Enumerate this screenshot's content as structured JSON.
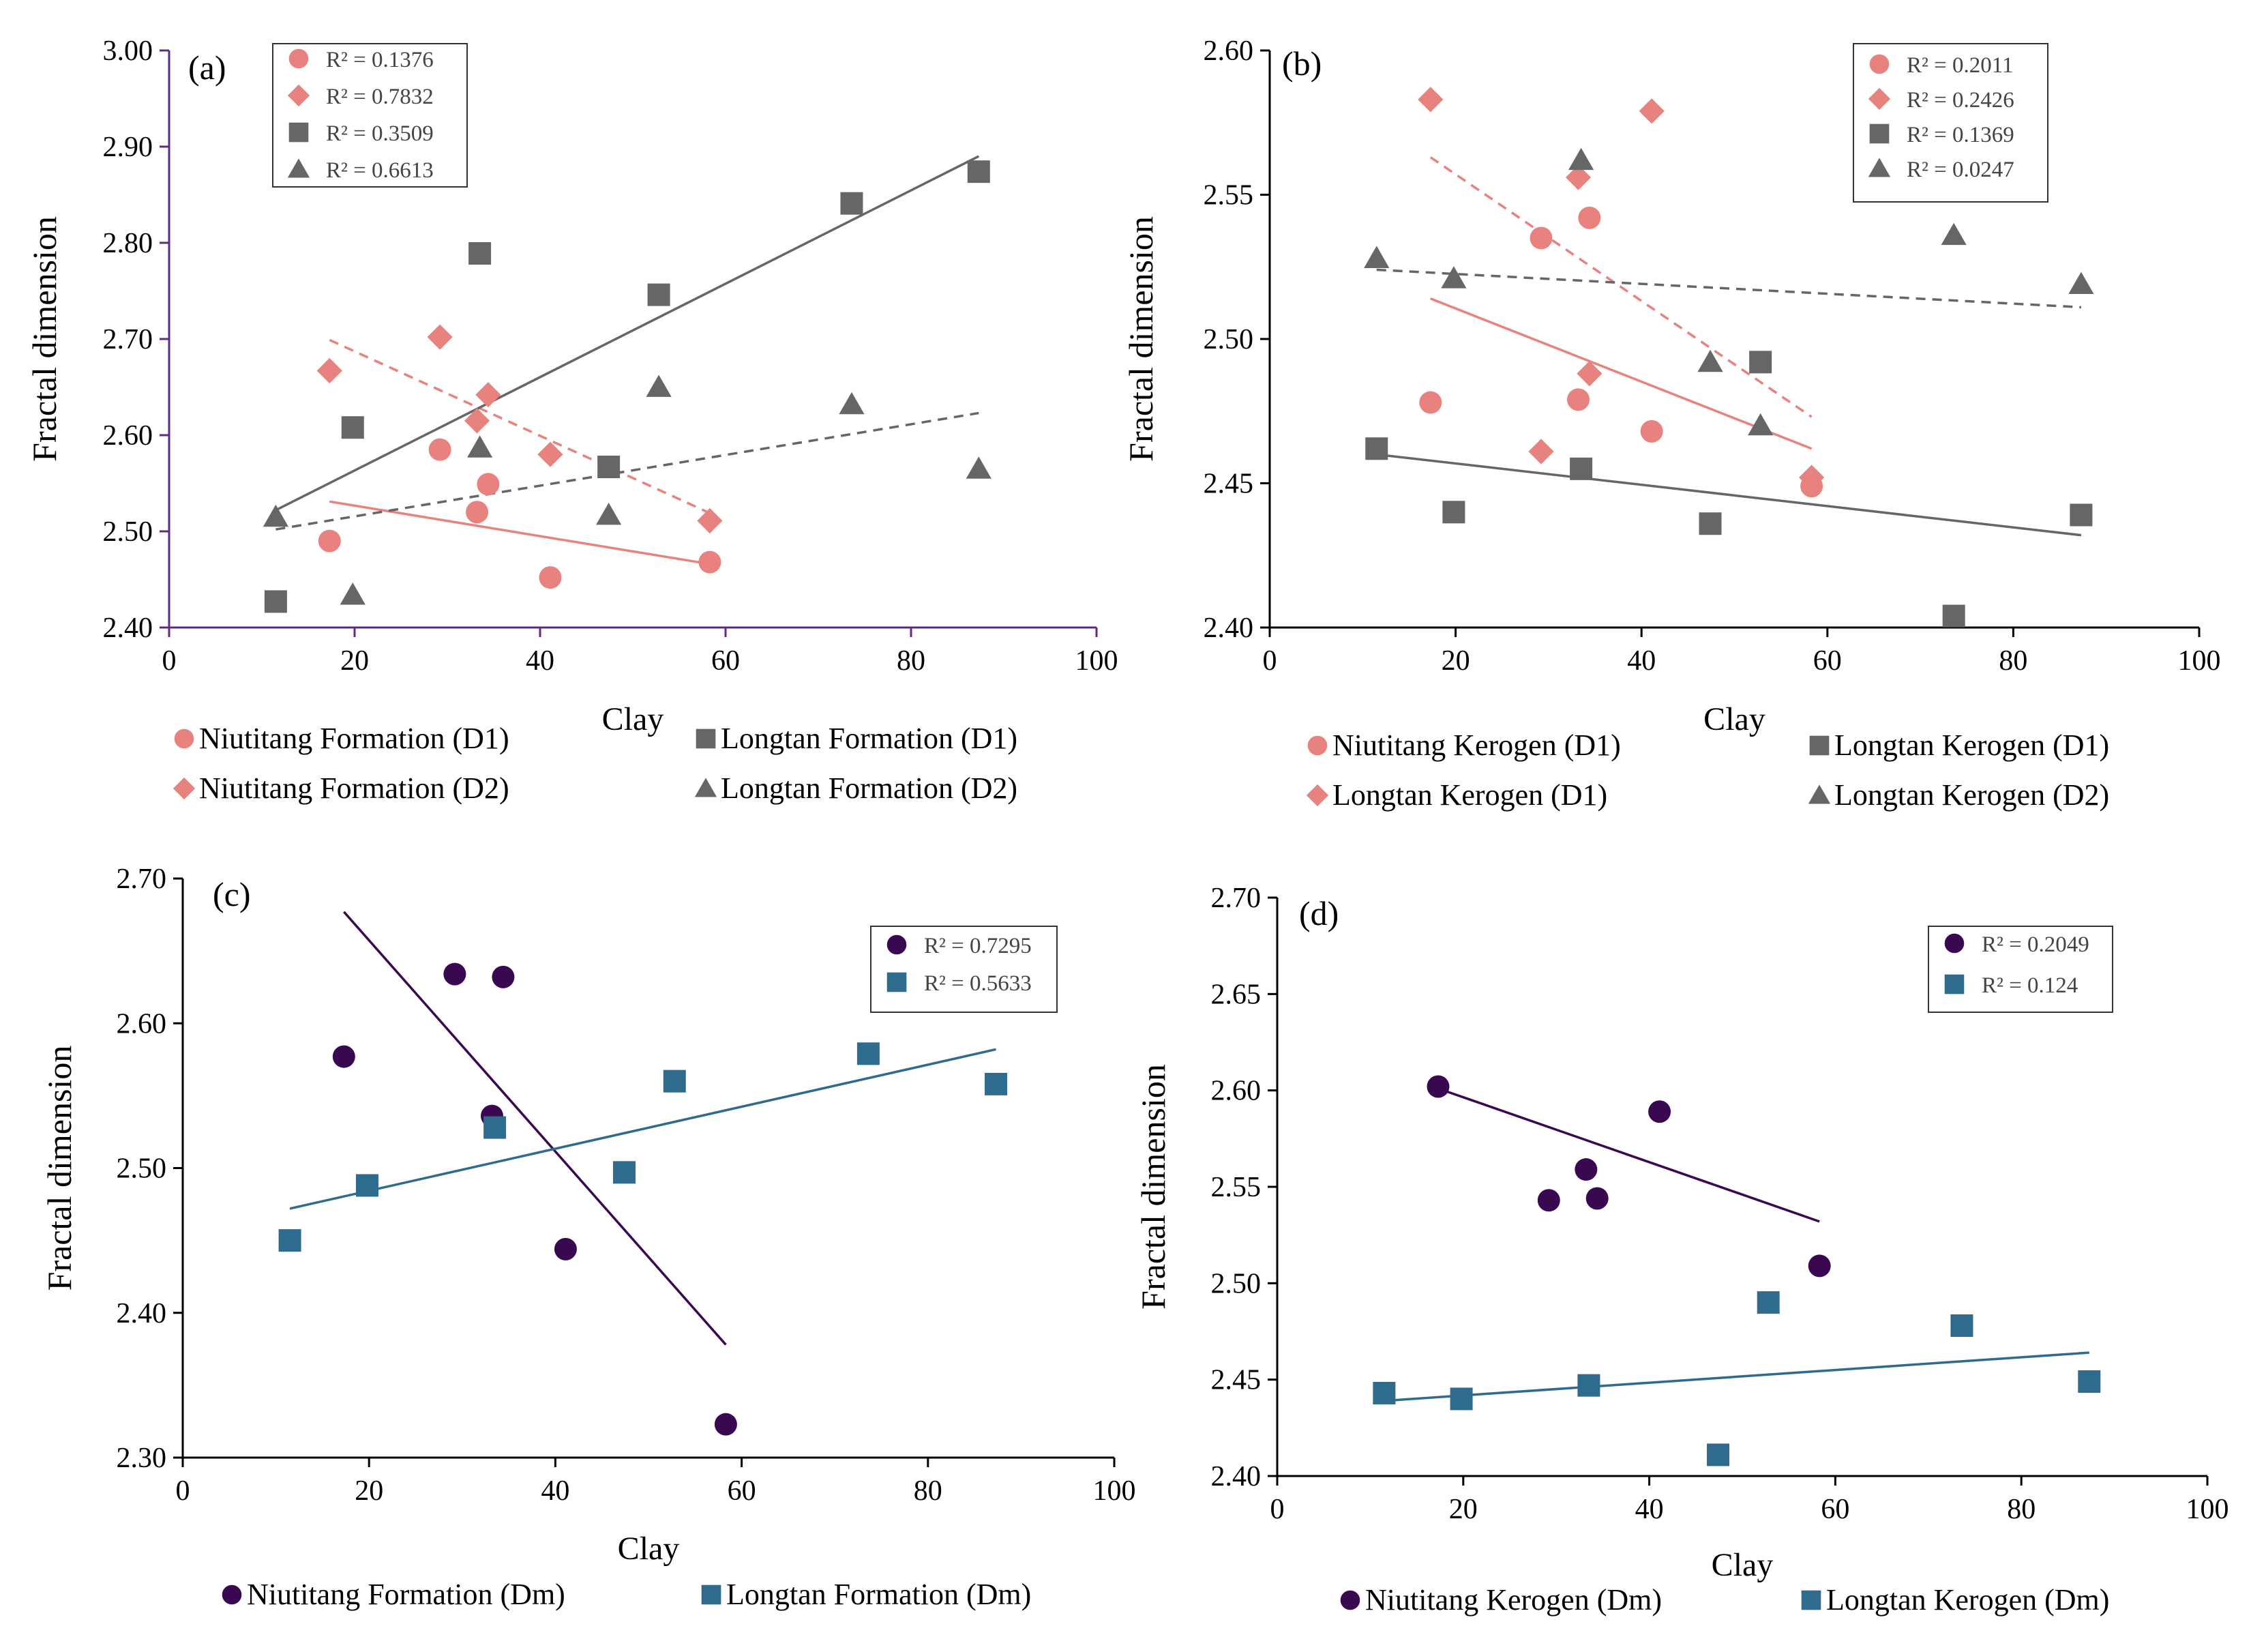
{
  "colors": {
    "pink": "#E8827E",
    "gray": "#666666",
    "purple": "#3A0850",
    "blue": "#2E6B8C",
    "axis_a": "#5B2C82",
    "axis": "#000000"
  },
  "chart_data": [
    {
      "id": "a",
      "type": "scatter",
      "panel_label": "(a)",
      "xlabel": "Clay",
      "ylabel": "Fractal dimension",
      "xlim": [
        0,
        100
      ],
      "ylim": [
        2.4,
        3.0
      ],
      "xticks": [
        "0",
        "20",
        "40",
        "60",
        "80",
        "100"
      ],
      "yticks": [
        "2.40",
        "2.50",
        "2.60",
        "2.70",
        "2.80",
        "2.90",
        "3.00"
      ],
      "yticks_values": [
        2.4,
        2.5,
        2.6,
        2.7,
        2.8,
        2.9,
        3.0
      ],
      "series": [
        {
          "name": "Niutitang Formation (D1)",
          "marker": "circle",
          "color": "#E8827E",
          "line": "solid",
          "r2": "R² = 0.1376",
          "points": [
            [
              17.3,
              2.49
            ],
            [
              29.2,
              2.585
            ],
            [
              33.2,
              2.52
            ],
            [
              34.4,
              2.549
            ],
            [
              41.1,
              2.452
            ],
            [
              58.3,
              2.468
            ]
          ],
          "trend": [
            [
              17.3,
              2.531
            ],
            [
              58.3,
              2.466
            ]
          ]
        },
        {
          "name": "Niutitang Formation (D2)",
          "marker": "diamond",
          "color": "#E8827E",
          "line": "dashed",
          "r2": "R² = 0.7832",
          "points": [
            [
              17.3,
              2.667
            ],
            [
              29.2,
              2.702
            ],
            [
              33.2,
              2.615
            ],
            [
              34.4,
              2.642
            ],
            [
              41.1,
              2.58
            ],
            [
              58.3,
              2.511
            ]
          ],
          "trend": [
            [
              17.3,
              2.699
            ],
            [
              58.3,
              2.519
            ]
          ]
        },
        {
          "name": "Longtan Formation (D1)",
          "marker": "square",
          "color": "#666666",
          "line": "solid",
          "r2": "R² = 0.3509",
          "points": [
            [
              11.5,
              2.427
            ],
            [
              19.8,
              2.608
            ],
            [
              33.5,
              2.789
            ],
            [
              47.4,
              2.567
            ],
            [
              52.8,
              2.746
            ],
            [
              73.6,
              2.841
            ],
            [
              87.3,
              2.874
            ]
          ],
          "trend": [
            [
              11.5,
              2.522
            ],
            [
              87.3,
              2.89
            ]
          ]
        },
        {
          "name": "Longtan Formation (D2)",
          "marker": "triangle",
          "color": "#666666",
          "line": "dashed",
          "r2": "R² = 0.6613",
          "points": [
            [
              11.5,
              2.515
            ],
            [
              19.8,
              2.434
            ],
            [
              33.5,
              2.587
            ],
            [
              47.4,
              2.517
            ],
            [
              52.8,
              2.65
            ],
            [
              73.6,
              2.632
            ],
            [
              87.3,
              2.565
            ]
          ],
          "trend": [
            [
              11.5,
              2.502
            ],
            [
              87.3,
              2.623
            ]
          ]
        }
      ]
    },
    {
      "id": "b",
      "type": "scatter",
      "panel_label": "(b)",
      "xlabel": "Clay",
      "ylabel": "Fractal dimension",
      "xlim": [
        0,
        100
      ],
      "ylim": [
        2.4,
        2.6
      ],
      "xticks": [
        "0",
        "20",
        "40",
        "60",
        "80",
        "100"
      ],
      "yticks": [
        "2.40",
        "2.45",
        "2.50",
        "2.55",
        "2.60"
      ],
      "yticks_values": [
        2.4,
        2.45,
        2.5,
        2.55,
        2.6
      ],
      "series": [
        {
          "name": "Niutitang Kerogen (D1)",
          "marker": "circle",
          "color": "#E8827E",
          "line": "solid",
          "r2": "R² = 0.2011",
          "points": [
            [
              17.3,
              2.478
            ],
            [
              29.2,
              2.535
            ],
            [
              33.2,
              2.479
            ],
            [
              34.4,
              2.542
            ],
            [
              41.1,
              2.468
            ],
            [
              58.3,
              2.449
            ]
          ],
          "trend": [
            [
              17.3,
              2.514
            ],
            [
              58.3,
              2.462
            ]
          ]
        },
        {
          "name": "Longtan Kerogen (D1)",
          "marker": "diamond",
          "color": "#E8827E",
          "line": "dashed",
          "r2": "R² = 0.2426",
          "points": [
            [
              17.3,
              2.583
            ],
            [
              29.2,
              2.461
            ],
            [
              33.2,
              2.556
            ],
            [
              34.4,
              2.488
            ],
            [
              41.1,
              2.579
            ],
            [
              58.3,
              2.452
            ]
          ],
          "trend": [
            [
              17.3,
              2.563
            ],
            [
              58.3,
              2.473
            ]
          ]
        },
        {
          "name": "Longtan Kerogen (D1)",
          "marker": "square",
          "color": "#666666",
          "line": "solid",
          "r2": "R² = 0.1369",
          "points": [
            [
              11.5,
              2.462
            ],
            [
              19.8,
              2.44
            ],
            [
              33.5,
              2.455
            ],
            [
              47.4,
              2.436
            ],
            [
              52.8,
              2.492
            ],
            [
              73.6,
              2.404
            ],
            [
              87.3,
              2.439
            ]
          ],
          "trend": [
            [
              11.5,
              2.46
            ],
            [
              87.3,
              2.432
            ]
          ]
        },
        {
          "name": "Longtan Kerogen (D2)",
          "marker": "triangle",
          "color": "#666666",
          "line": "dashed",
          "r2": "R² = 0.0247",
          "points": [
            [
              11.5,
              2.528
            ],
            [
              19.8,
              2.521
            ],
            [
              33.5,
              2.562
            ],
            [
              47.4,
              2.492
            ],
            [
              52.8,
              2.47
            ],
            [
              73.6,
              2.536
            ],
            [
              87.3,
              2.519
            ]
          ],
          "trend": [
            [
              11.5,
              2.524
            ],
            [
              87.3,
              2.511
            ]
          ]
        }
      ]
    },
    {
      "id": "c",
      "type": "scatter",
      "panel_label": "(c)",
      "xlabel": "Clay",
      "ylabel": "Fractal dimension",
      "xlim": [
        0,
        100
      ],
      "ylim": [
        2.3,
        2.7
      ],
      "xticks": [
        "0",
        "20",
        "40",
        "60",
        "80",
        "100"
      ],
      "yticks": [
        "2.30",
        "2.40",
        "2.50",
        "2.60",
        "2.70"
      ],
      "yticks_values": [
        2.3,
        2.4,
        2.5,
        2.6,
        2.7
      ],
      "series": [
        {
          "name": "Niutitang Formation (Dm)",
          "marker": "circle",
          "color": "#3A0850",
          "line": "solid",
          "r2": "R² = 0.7295",
          "points": [
            [
              17.3,
              2.577
            ],
            [
              29.2,
              2.634
            ],
            [
              33.2,
              2.536
            ],
            [
              34.4,
              2.632
            ],
            [
              41.1,
              2.444
            ],
            [
              58.3,
              2.323
            ]
          ],
          "trend": [
            [
              17.3,
              2.677
            ],
            [
              58.3,
              2.378
            ]
          ]
        },
        {
          "name": "Longtan Formation (Dm)",
          "marker": "square",
          "color": "#2E6B8C",
          "line": "solid",
          "r2": "R² = 0.5633",
          "points": [
            [
              11.5,
              2.45
            ],
            [
              19.8,
              2.488
            ],
            [
              33.5,
              2.528
            ],
            [
              47.4,
              2.497
            ],
            [
              52.8,
              2.56
            ],
            [
              73.6,
              2.579
            ],
            [
              87.3,
              2.558
            ]
          ],
          "trend": [
            [
              11.5,
              2.472
            ],
            [
              87.3,
              2.582
            ]
          ]
        }
      ]
    },
    {
      "id": "d",
      "type": "scatter",
      "panel_label": "(d)",
      "xlabel": "Clay",
      "ylabel": "Fractal dimension",
      "xlim": [
        0,
        100
      ],
      "ylim": [
        2.4,
        2.7
      ],
      "xticks": [
        "0",
        "20",
        "40",
        "60",
        "80",
        "100"
      ],
      "yticks": [
        "2.40",
        "2.45",
        "2.50",
        "2.55",
        "2.60",
        "2.65",
        "2.70"
      ],
      "yticks_values": [
        2.4,
        2.45,
        2.5,
        2.55,
        2.6,
        2.65,
        2.7
      ],
      "series": [
        {
          "name": "Niutitang Kerogen (Dm)",
          "marker": "circle",
          "color": "#3A0850",
          "line": "solid",
          "r2": "R² = 0.2049",
          "points": [
            [
              17.3,
              2.602
            ],
            [
              29.2,
              2.543
            ],
            [
              33.2,
              2.559
            ],
            [
              34.4,
              2.544
            ],
            [
              41.1,
              2.589
            ],
            [
              58.3,
              2.509
            ]
          ],
          "trend": [
            [
              17.3,
              2.601
            ],
            [
              58.3,
              2.532
            ]
          ]
        },
        {
          "name": "Longtan Kerogen (Dm)",
          "marker": "square",
          "color": "#2E6B8C",
          "line": "solid",
          "r2": "R² = 0.124",
          "points": [
            [
              11.5,
              2.443
            ],
            [
              19.8,
              2.44
            ],
            [
              33.5,
              2.447
            ],
            [
              47.4,
              2.411
            ],
            [
              52.8,
              2.49
            ],
            [
              73.6,
              2.478
            ],
            [
              87.3,
              2.449
            ]
          ],
          "trend": [
            [
              11.5,
              2.439
            ],
            [
              87.3,
              2.464
            ]
          ]
        }
      ]
    }
  ]
}
